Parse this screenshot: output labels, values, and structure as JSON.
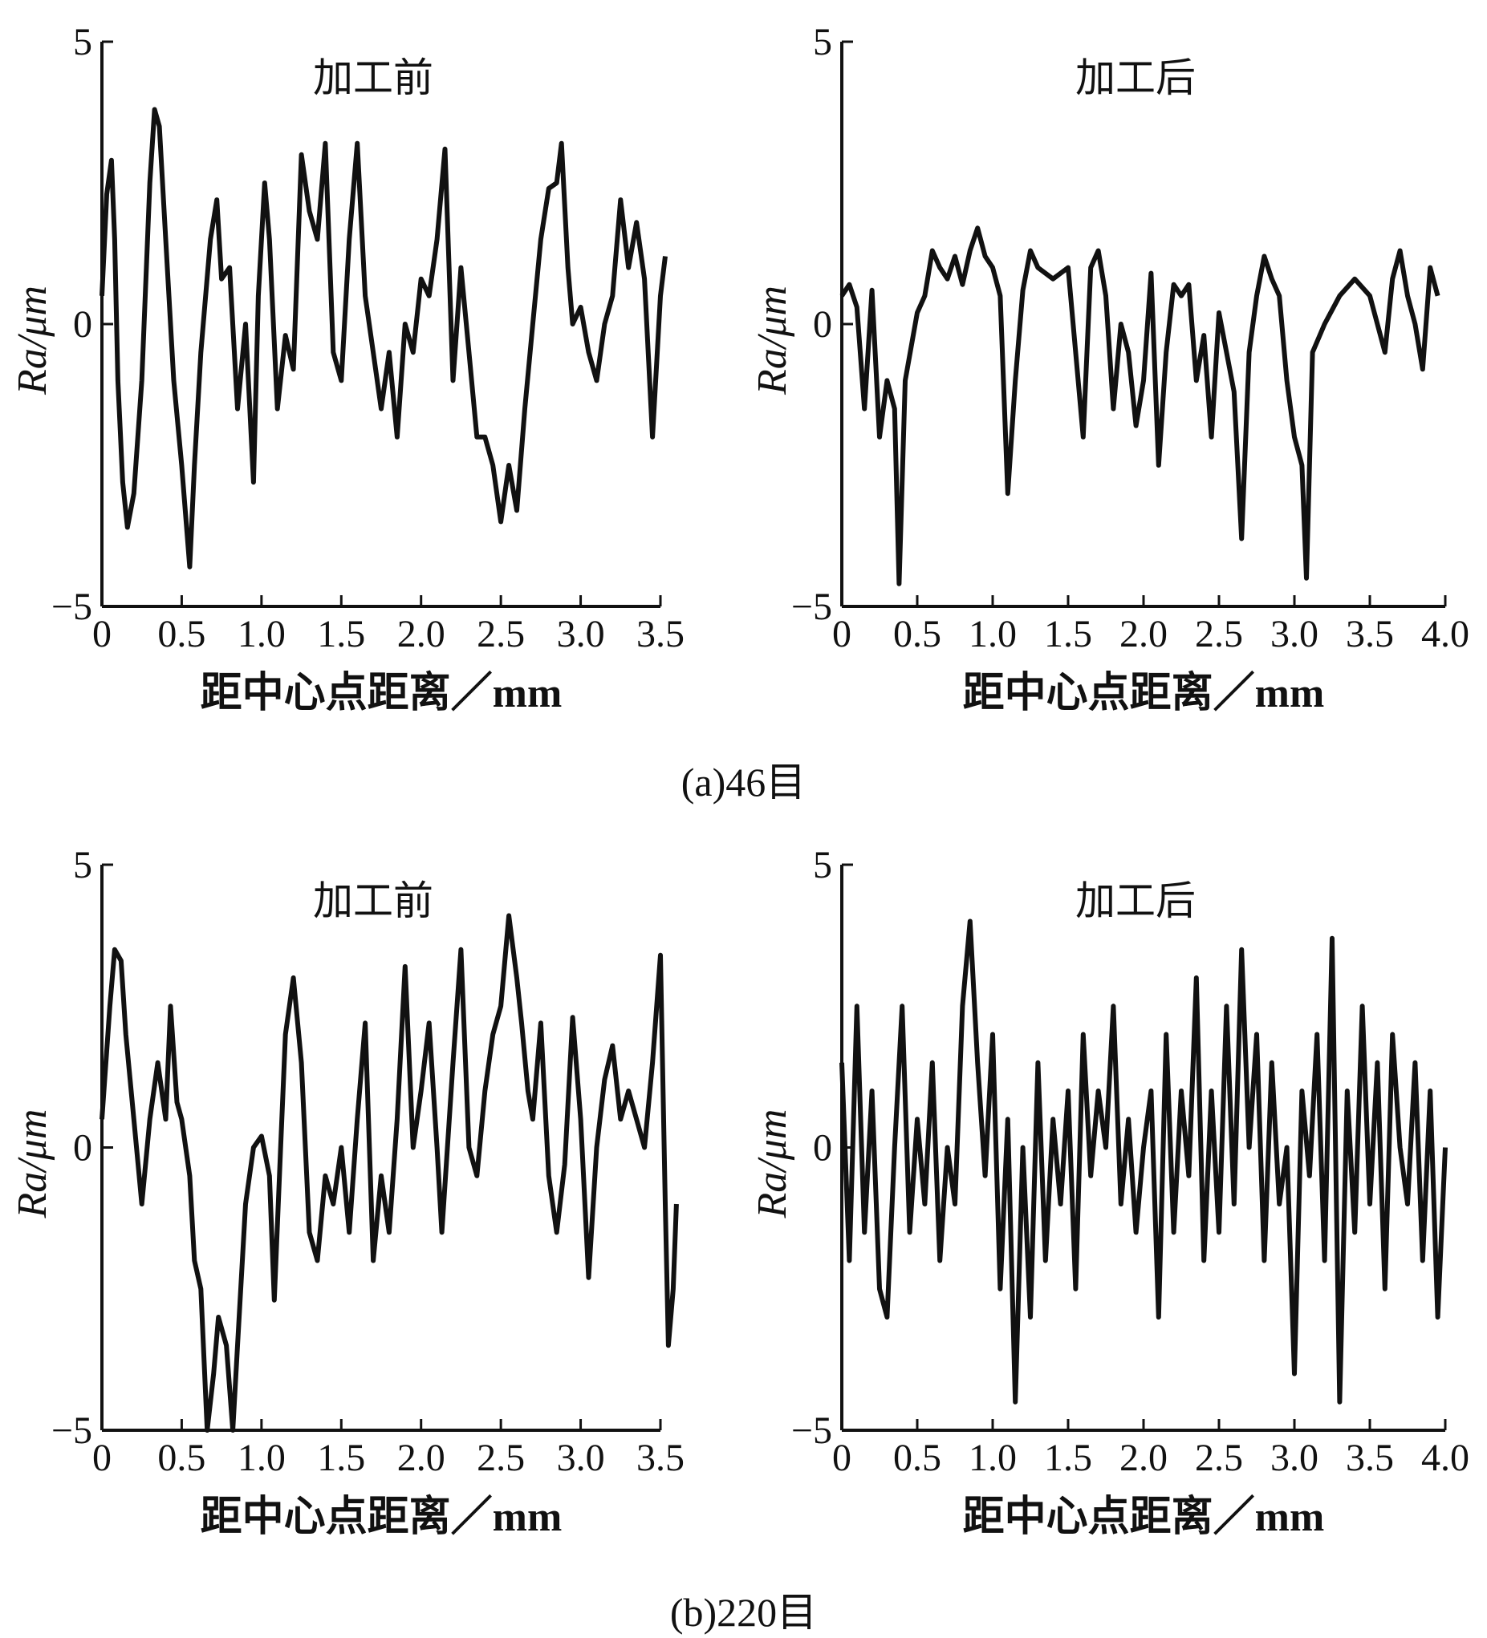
{
  "captions": [
    "(a)46目",
    "(b)220目"
  ],
  "chart_data": [
    {
      "type": "line",
      "title": "加工前",
      "group": "(a)46目",
      "xlabel": "距中心点距离／mm",
      "ylabel": "Ra/μm",
      "xlim": [
        0,
        3.5
      ],
      "ylim": [
        -5,
        5
      ],
      "xticks": [
        "0",
        "0.5",
        "1.0",
        "1.5",
        "2.0",
        "2.5",
        "3.0",
        "3.5"
      ],
      "yticks": [
        "-5",
        "0",
        "5"
      ],
      "x": [
        0,
        0.03,
        0.06,
        0.08,
        0.1,
        0.13,
        0.16,
        0.2,
        0.25,
        0.3,
        0.33,
        0.36,
        0.4,
        0.45,
        0.5,
        0.55,
        0.58,
        0.62,
        0.68,
        0.72,
        0.75,
        0.8,
        0.85,
        0.9,
        0.95,
        0.98,
        1.02,
        1.05,
        1.1,
        1.15,
        1.2,
        1.25,
        1.3,
        1.35,
        1.4,
        1.45,
        1.5,
        1.55,
        1.6,
        1.65,
        1.7,
        1.75,
        1.8,
        1.85,
        1.9,
        1.95,
        2.0,
        2.05,
        2.1,
        2.15,
        2.2,
        2.25,
        2.3,
        2.35,
        2.4,
        2.45,
        2.5,
        2.55,
        2.6,
        2.65,
        2.7,
        2.75,
        2.8,
        2.85,
        2.88,
        2.92,
        2.95,
        3.0,
        3.05,
        3.1,
        3.15,
        3.2,
        3.25,
        3.3,
        3.35,
        3.4,
        3.45,
        3.5,
        3.53
      ],
      "y": [
        0.5,
        2.3,
        2.9,
        1.5,
        -1,
        -2.8,
        -3.6,
        -3,
        -1,
        2.5,
        3.8,
        3.5,
        1.5,
        -1,
        -2.5,
        -4.3,
        -2.5,
        -0.5,
        1.5,
        2.2,
        0.8,
        1,
        -1.5,
        0,
        -2.8,
        0.5,
        2.5,
        1.5,
        -1.5,
        -0.2,
        -0.8,
        3,
        2,
        1.5,
        3.2,
        -0.5,
        -1,
        1.5,
        3.2,
        0.5,
        -0.5,
        -1.5,
        -0.5,
        -2,
        0,
        -0.5,
        0.8,
        0.5,
        1.5,
        3.1,
        -1,
        1,
        -0.5,
        -2,
        -2,
        -2.5,
        -3.5,
        -2.5,
        -3.3,
        -1.5,
        0,
        1.5,
        2.4,
        2.5,
        3.2,
        1,
        0,
        0.3,
        -0.5,
        -1,
        0,
        0.5,
        2.2,
        1,
        1.8,
        0.8,
        -2,
        0.5,
        1.2
      ]
    },
    {
      "type": "line",
      "title": "加工后",
      "group": "(a)46目",
      "xlabel": "距中心点距离／mm",
      "ylabel": "Ra/μm",
      "xlim": [
        0,
        4.0
      ],
      "ylim": [
        -5,
        5
      ],
      "xticks": [
        "0",
        "0.5",
        "1.0",
        "1.5",
        "2.0",
        "2.5",
        "3.0",
        "3.5",
        "4.0"
      ],
      "yticks": [
        "-5",
        "0",
        "5"
      ],
      "x": [
        0,
        0.05,
        0.1,
        0.15,
        0.2,
        0.25,
        0.3,
        0.35,
        0.38,
        0.42,
        0.5,
        0.55,
        0.6,
        0.65,
        0.7,
        0.75,
        0.8,
        0.85,
        0.9,
        0.95,
        1.0,
        1.05,
        1.1,
        1.15,
        1.2,
        1.25,
        1.3,
        1.4,
        1.5,
        1.55,
        1.6,
        1.65,
        1.7,
        1.75,
        1.8,
        1.85,
        1.9,
        1.95,
        2.0,
        2.05,
        2.1,
        2.15,
        2.2,
        2.25,
        2.3,
        2.35,
        2.4,
        2.45,
        2.5,
        2.55,
        2.6,
        2.65,
        2.7,
        2.75,
        2.8,
        2.85,
        2.9,
        2.95,
        3.0,
        3.05,
        3.08,
        3.12,
        3.2,
        3.3,
        3.4,
        3.5,
        3.55,
        3.6,
        3.65,
        3.7,
        3.75,
        3.8,
        3.85,
        3.9,
        3.95
      ],
      "y": [
        0.5,
        0.7,
        0.3,
        -1.5,
        0.6,
        -2,
        -1,
        -1.5,
        -4.6,
        -1,
        0.2,
        0.5,
        1.3,
        1,
        0.8,
        1.2,
        0.7,
        1.3,
        1.7,
        1.2,
        1,
        0.5,
        -3,
        -1,
        0.6,
        1.3,
        1,
        0.8,
        1,
        -0.5,
        -2,
        1,
        1.3,
        0.5,
        -1.5,
        0,
        -0.5,
        -1.8,
        -1,
        0.9,
        -2.5,
        -0.5,
        0.7,
        0.5,
        0.7,
        -1,
        -0.2,
        -2,
        0.2,
        -0.5,
        -1.2,
        -3.8,
        -0.5,
        0.5,
        1.2,
        0.8,
        0.5,
        -1,
        -2,
        -2.5,
        -4.5,
        -0.5,
        0,
        0.5,
        0.8,
        0.5,
        0,
        -0.5,
        0.8,
        1.3,
        0.5,
        0,
        -0.8,
        1,
        0.5
      ]
    },
    {
      "type": "line",
      "title": "加工前",
      "group": "(b)220目",
      "xlabel": "距中心点距离／mm",
      "ylabel": "Ra/μm",
      "xlim": [
        0,
        3.5
      ],
      "ylim": [
        -5,
        5
      ],
      "xticks": [
        "0",
        "0.5",
        "1.0",
        "1.5",
        "2.0",
        "2.5",
        "3.0",
        "3.5"
      ],
      "yticks": [
        "-5",
        "0",
        "5"
      ],
      "x": [
        0,
        0.05,
        0.08,
        0.12,
        0.15,
        0.2,
        0.25,
        0.3,
        0.35,
        0.4,
        0.43,
        0.47,
        0.5,
        0.55,
        0.58,
        0.62,
        0.66,
        0.7,
        0.73,
        0.78,
        0.82,
        0.85,
        0.9,
        0.95,
        1.0,
        1.05,
        1.08,
        1.12,
        1.15,
        1.2,
        1.25,
        1.3,
        1.35,
        1.4,
        1.45,
        1.5,
        1.55,
        1.6,
        1.65,
        1.7,
        1.75,
        1.8,
        1.85,
        1.9,
        1.95,
        2.0,
        2.05,
        2.1,
        2.13,
        2.2,
        2.25,
        2.3,
        2.35,
        2.4,
        2.45,
        2.5,
        2.55,
        2.6,
        2.63,
        2.67,
        2.7,
        2.75,
        2.8,
        2.85,
        2.9,
        2.95,
        3.0,
        3.05,
        3.1,
        3.15,
        3.2,
        3.25,
        3.3,
        3.35,
        3.4,
        3.45,
        3.5,
        3.53,
        3.55,
        3.58,
        3.6
      ],
      "y": [
        0.5,
        2.5,
        3.5,
        3.3,
        2,
        0.5,
        -1,
        0.5,
        1.5,
        0.5,
        2.5,
        0.8,
        0.5,
        -0.5,
        -2,
        -2.5,
        -5,
        -4,
        -3,
        -3.5,
        -5,
        -3.5,
        -1,
        0,
        0.2,
        -0.5,
        -2.7,
        0,
        2,
        3,
        1.5,
        -1.5,
        -2,
        -0.5,
        -1,
        0,
        -1.5,
        0.5,
        2.2,
        -2,
        -0.5,
        -1.5,
        0.5,
        3.2,
        0,
        1,
        2.2,
        0,
        -1.5,
        1.5,
        3.5,
        0,
        -0.5,
        1,
        2,
        2.5,
        4.1,
        3,
        2.2,
        1,
        0.5,
        2.2,
        -0.5,
        -1.5,
        -0.3,
        2.3,
        0.5,
        -2.3,
        0,
        1.2,
        1.8,
        0.5,
        1,
        0.5,
        0,
        1.5,
        3.4,
        -1,
        -3.5,
        -2.5,
        -1
      ]
    },
    {
      "type": "line",
      "title": "加工后",
      "group": "(b)220目",
      "xlabel": "距中心点距离／mm",
      "ylabel": "Ra/μm",
      "xlim": [
        0,
        4.0
      ],
      "ylim": [
        -5,
        5
      ],
      "xticks": [
        "0",
        "0.5",
        "1.0",
        "1.5",
        "2.0",
        "2.5",
        "3.0",
        "3.5",
        "4.0"
      ],
      "yticks": [
        "-5",
        "0",
        "5"
      ],
      "x": [
        0,
        0.05,
        0.1,
        0.15,
        0.2,
        0.25,
        0.3,
        0.35,
        0.4,
        0.45,
        0.5,
        0.55,
        0.6,
        0.65,
        0.7,
        0.75,
        0.8,
        0.85,
        0.9,
        0.95,
        1.0,
        1.05,
        1.1,
        1.15,
        1.2,
        1.25,
        1.3,
        1.35,
        1.4,
        1.45,
        1.5,
        1.55,
        1.6,
        1.65,
        1.7,
        1.75,
        1.8,
        1.85,
        1.9,
        1.95,
        2.0,
        2.05,
        2.1,
        2.15,
        2.2,
        2.25,
        2.3,
        2.35,
        2.4,
        2.45,
        2.5,
        2.55,
        2.6,
        2.65,
        2.7,
        2.75,
        2.8,
        2.85,
        2.9,
        2.95,
        3.0,
        3.05,
        3.1,
        3.15,
        3.2,
        3.25,
        3.3,
        3.35,
        3.4,
        3.45,
        3.5,
        3.55,
        3.6,
        3.65,
        3.7,
        3.75,
        3.8,
        3.85,
        3.9,
        3.95,
        4.0
      ],
      "y": [
        1.5,
        -2,
        2.5,
        -1.5,
        1,
        -2.5,
        -3,
        0,
        2.5,
        -1.5,
        0.5,
        -1,
        1.5,
        -2,
        0,
        -1,
        2.5,
        4,
        1.5,
        -0.5,
        2,
        -2.5,
        0.5,
        -4.5,
        0,
        -3,
        1.5,
        -2,
        0.5,
        -1,
        1,
        -2.5,
        2,
        -0.5,
        1,
        0,
        2.5,
        -1,
        0.5,
        -1.5,
        0,
        1,
        -3,
        2,
        -1.5,
        1,
        -0.5,
        3,
        -2,
        1,
        -1.5,
        2.5,
        -1,
        3.5,
        0,
        2,
        -2,
        1.5,
        -1,
        0,
        -4,
        1,
        -0.5,
        2,
        -2,
        3.7,
        -4.5,
        1,
        -1.5,
        2.5,
        -1,
        1.5,
        -2.5,
        2,
        0,
        -1,
        1.5,
        -2,
        1,
        -3,
        0
      ]
    }
  ]
}
